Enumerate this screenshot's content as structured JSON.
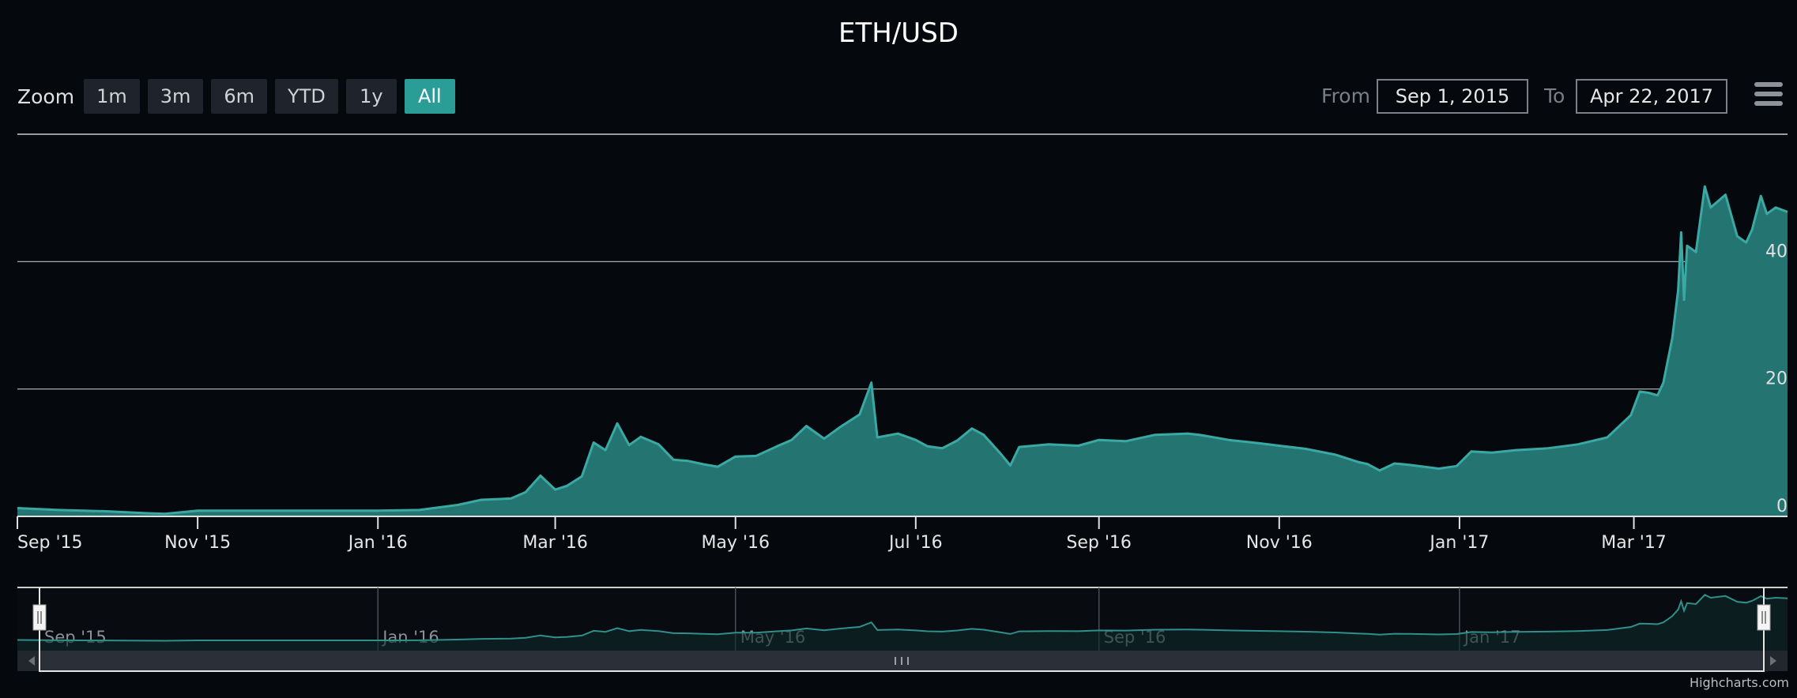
{
  "title": "ETH/USD",
  "zoom": {
    "label": "Zoom",
    "buttons": [
      "1m",
      "3m",
      "6m",
      "YTD",
      "1y",
      "All"
    ],
    "active": "All"
  },
  "range": {
    "from_label": "From",
    "from_value": "Sep 1, 2015",
    "to_label": "To",
    "to_value": "Apr 22, 2017"
  },
  "credit": "Highcharts.com",
  "colors": {
    "series_fill": "#247472",
    "series_line": "#3aa9a3",
    "active_button": "#2a9d96",
    "background": "#05080d"
  },
  "chart_data": {
    "type": "area",
    "title": "ETH/USD",
    "x_range": [
      "2015-09-01",
      "2017-04-22"
    ],
    "ylim": [
      0,
      60
    ],
    "y_ticks": [
      0,
      20,
      40
    ],
    "y_tick_labels": [
      "0",
      "20",
      "40"
    ],
    "x_tick_labels": [
      "Sep '15",
      "Nov '15",
      "Jan '16",
      "Mar '16",
      "May '16",
      "Jul '16",
      "Sep '16",
      "Nov '16",
      "Jan '17",
      "Mar '17"
    ],
    "navigator_tick_labels": [
      "Sep '15",
      "Jan '16",
      "May '16",
      "Sep '16",
      "Jan '17"
    ],
    "grid": true,
    "series": [
      {
        "values": [
          [
            "2015-09-01",
            1.3
          ],
          [
            "2015-09-15",
            1.0
          ],
          [
            "2015-10-01",
            0.8
          ],
          [
            "2015-10-15",
            0.5
          ],
          [
            "2015-10-21",
            0.4
          ],
          [
            "2015-11-01",
            0.9
          ],
          [
            "2015-11-15",
            0.9
          ],
          [
            "2015-12-01",
            0.9
          ],
          [
            "2015-12-15",
            0.9
          ],
          [
            "2016-01-01",
            0.9
          ],
          [
            "2016-01-15",
            1.0
          ],
          [
            "2016-01-28",
            1.8
          ],
          [
            "2016-02-05",
            2.6
          ],
          [
            "2016-02-15",
            2.8
          ],
          [
            "2016-02-20",
            3.8
          ],
          [
            "2016-02-25",
            6.4
          ],
          [
            "2016-03-01",
            4.2
          ],
          [
            "2016-03-05",
            4.8
          ],
          [
            "2016-03-10",
            6.3
          ],
          [
            "2016-03-14",
            11.6
          ],
          [
            "2016-03-18",
            10.4
          ],
          [
            "2016-03-22",
            14.6
          ],
          [
            "2016-03-26",
            11.2
          ],
          [
            "2016-03-30",
            12.5
          ],
          [
            "2016-04-05",
            11.3
          ],
          [
            "2016-04-10",
            8.9
          ],
          [
            "2016-04-15",
            8.7
          ],
          [
            "2016-04-20",
            8.2
          ],
          [
            "2016-04-25",
            7.8
          ],
          [
            "2016-05-01",
            9.4
          ],
          [
            "2016-05-08",
            9.5
          ],
          [
            "2016-05-15",
            11.0
          ],
          [
            "2016-05-20",
            12.0
          ],
          [
            "2016-05-25",
            14.2
          ],
          [
            "2016-05-31",
            12.2
          ],
          [
            "2016-06-05",
            13.9
          ],
          [
            "2016-06-12",
            16.0
          ],
          [
            "2016-06-16",
            21.0
          ],
          [
            "2016-06-18",
            12.4
          ],
          [
            "2016-06-25",
            13.0
          ],
          [
            "2016-07-01",
            12.0
          ],
          [
            "2016-07-05",
            11.0
          ],
          [
            "2016-07-10",
            10.7
          ],
          [
            "2016-07-15",
            11.9
          ],
          [
            "2016-07-20",
            13.8
          ],
          [
            "2016-07-24",
            12.8
          ],
          [
            "2016-07-30",
            9.7
          ],
          [
            "2016-08-02",
            8.0
          ],
          [
            "2016-08-05",
            10.9
          ],
          [
            "2016-08-15",
            11.3
          ],
          [
            "2016-08-25",
            11.1
          ],
          [
            "2016-09-01",
            12.0
          ],
          [
            "2016-09-10",
            11.8
          ],
          [
            "2016-09-20",
            12.8
          ],
          [
            "2016-10-01",
            13.0
          ],
          [
            "2016-10-05",
            12.8
          ],
          [
            "2016-10-15",
            12.0
          ],
          [
            "2016-10-25",
            11.5
          ],
          [
            "2016-11-01",
            11.1
          ],
          [
            "2016-11-10",
            10.6
          ],
          [
            "2016-11-20",
            9.7
          ],
          [
            "2016-11-28",
            8.5
          ],
          [
            "2016-12-01",
            8.2
          ],
          [
            "2016-12-05",
            7.2
          ],
          [
            "2016-12-10",
            8.3
          ],
          [
            "2016-12-15",
            8.1
          ],
          [
            "2016-12-25",
            7.5
          ],
          [
            "2016-12-31",
            7.9
          ],
          [
            "2017-01-05",
            10.2
          ],
          [
            "2017-01-12",
            10.0
          ],
          [
            "2017-01-20",
            10.4
          ],
          [
            "2017-01-31",
            10.7
          ],
          [
            "2017-02-10",
            11.3
          ],
          [
            "2017-02-20",
            12.4
          ],
          [
            "2017-02-28",
            15.9
          ],
          [
            "2017-03-03",
            19.6
          ],
          [
            "2017-03-06",
            19.4
          ],
          [
            "2017-03-09",
            19.0
          ],
          [
            "2017-03-11",
            21.0
          ],
          [
            "2017-03-14",
            28.0
          ],
          [
            "2017-03-16",
            35.5
          ],
          [
            "2017-03-17",
            44.6
          ],
          [
            "2017-03-18",
            34.0
          ],
          [
            "2017-03-19",
            42.5
          ],
          [
            "2017-03-22",
            41.5
          ],
          [
            "2017-03-25",
            51.8
          ],
          [
            "2017-03-27",
            48.5
          ],
          [
            "2017-04-01",
            50.5
          ],
          [
            "2017-04-05",
            44.0
          ],
          [
            "2017-04-08",
            43.0
          ],
          [
            "2017-04-10",
            45.0
          ],
          [
            "2017-04-13",
            50.3
          ],
          [
            "2017-04-15",
            47.5
          ],
          [
            "2017-04-18",
            48.5
          ],
          [
            "2017-04-22",
            47.8
          ]
        ]
      }
    ]
  }
}
